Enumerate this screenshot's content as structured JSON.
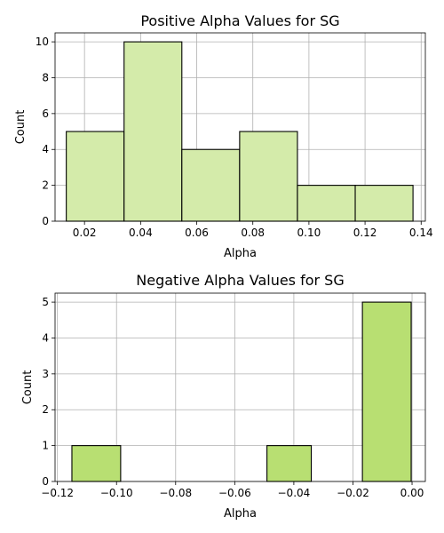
{
  "chart_data": [
    {
      "type": "bar",
      "title": "Positive Alpha Values for SG",
      "xlabel": "Alpha",
      "ylabel": "Count",
      "xlim": [
        0.0095,
        0.1415
      ],
      "ylim": [
        0,
        10.5
      ],
      "xticks": [
        0.02,
        0.04,
        0.06,
        0.08,
        0.1,
        0.12,
        0.14
      ],
      "xtick_labels": [
        "0.02",
        "0.04",
        "0.06",
        "0.08",
        "0.10",
        "0.12",
        "0.14"
      ],
      "yticks": [
        0,
        2,
        4,
        6,
        8,
        10
      ],
      "ytick_labels": [
        "0",
        "2",
        "4",
        "6",
        "8",
        "10"
      ],
      "grid": true,
      "bar_color": "#d4ebaa",
      "bin_edges": [
        0.0135,
        0.0341,
        0.0547,
        0.0753,
        0.0959,
        0.1165,
        0.1371
      ],
      "values": [
        5,
        10,
        4,
        5,
        2,
        2
      ]
    },
    {
      "type": "bar",
      "title": "Negative Alpha Values for SG",
      "xlabel": "Alpha",
      "ylabel": "Count",
      "xlim": [
        -0.1208,
        0.0045
      ],
      "ylim": [
        0,
        5.25
      ],
      "xticks": [
        -0.12,
        -0.1,
        -0.08,
        -0.06,
        -0.04,
        -0.02,
        0.0
      ],
      "xtick_labels": [
        "−0.12",
        "−0.10",
        "−0.08",
        "−0.06",
        "−0.04",
        "−0.02",
        "0.00"
      ],
      "yticks": [
        0,
        1,
        2,
        3,
        4,
        5
      ],
      "ytick_labels": [
        "0",
        "1",
        "2",
        "3",
        "4",
        "5"
      ],
      "grid": true,
      "bar_color": "#b8df72",
      "bin_edges": [
        -0.1151,
        -0.0986,
        -0.0821,
        -0.0656,
        -0.0491,
        -0.0341,
        -0.0168,
        -0.0003
      ],
      "values": [
        1,
        0,
        0,
        0,
        1,
        0,
        5
      ]
    }
  ]
}
